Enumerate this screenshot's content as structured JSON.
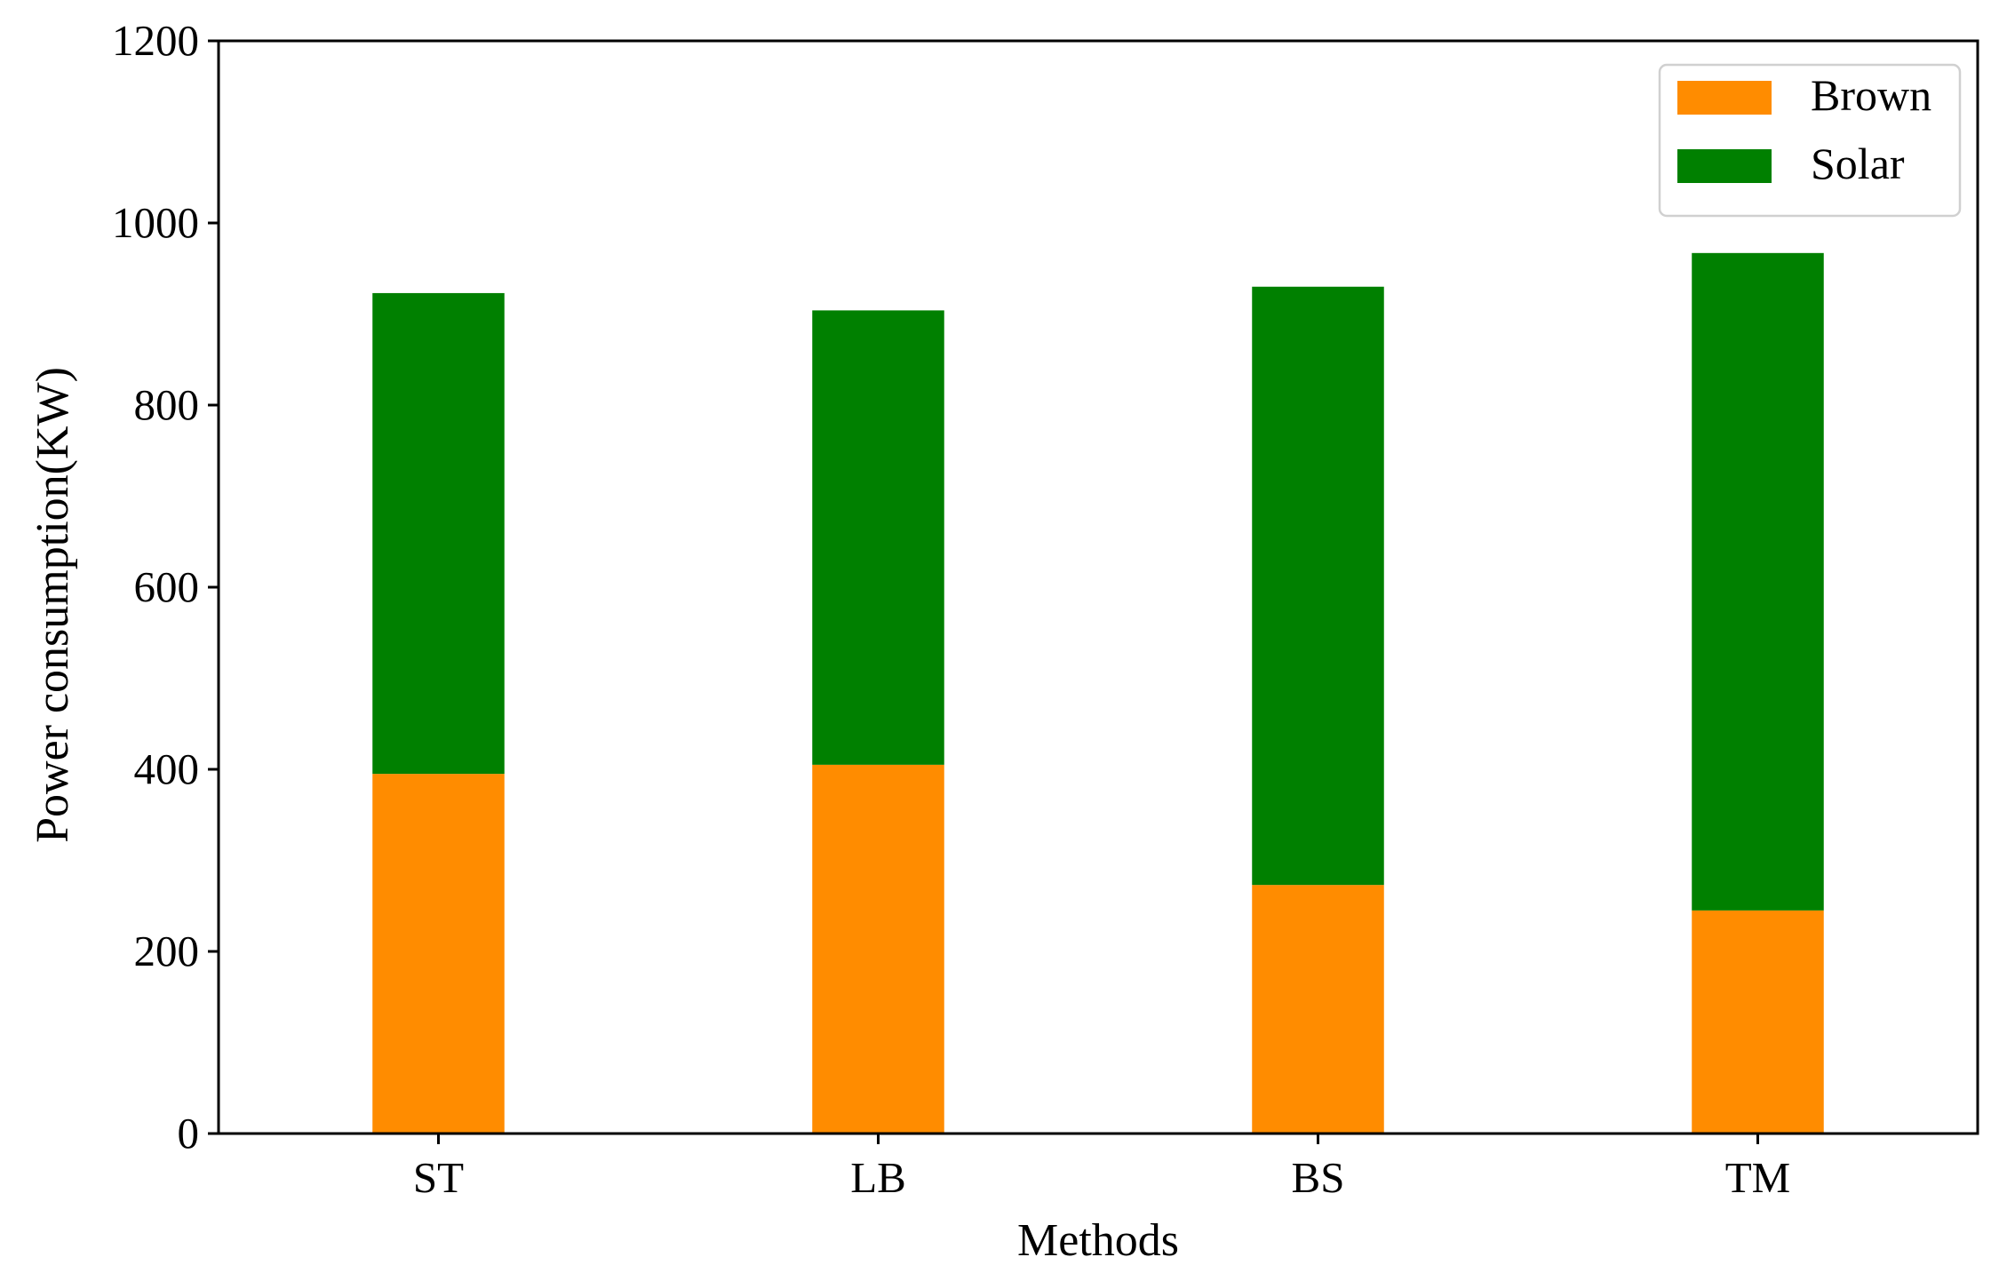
{
  "chart_data": {
    "type": "bar",
    "stacked": true,
    "title": "",
    "xlabel": "Methods",
    "ylabel": "Power consumption(KW)",
    "categories": [
      "ST",
      "LB",
      "BS",
      "TM"
    ],
    "series": [
      {
        "name": "Brown",
        "color": "#ff8c00",
        "values": [
          395,
          405,
          273,
          245
        ]
      },
      {
        "name": "Solar",
        "color": "#008000",
        "values": [
          528,
          499,
          657,
          722
        ]
      }
    ],
    "ylim": [
      0,
      1200
    ],
    "yticks": [
      0,
      200,
      400,
      600,
      800,
      1000,
      1200
    ],
    "grid": false,
    "legend_position": "top-right"
  }
}
